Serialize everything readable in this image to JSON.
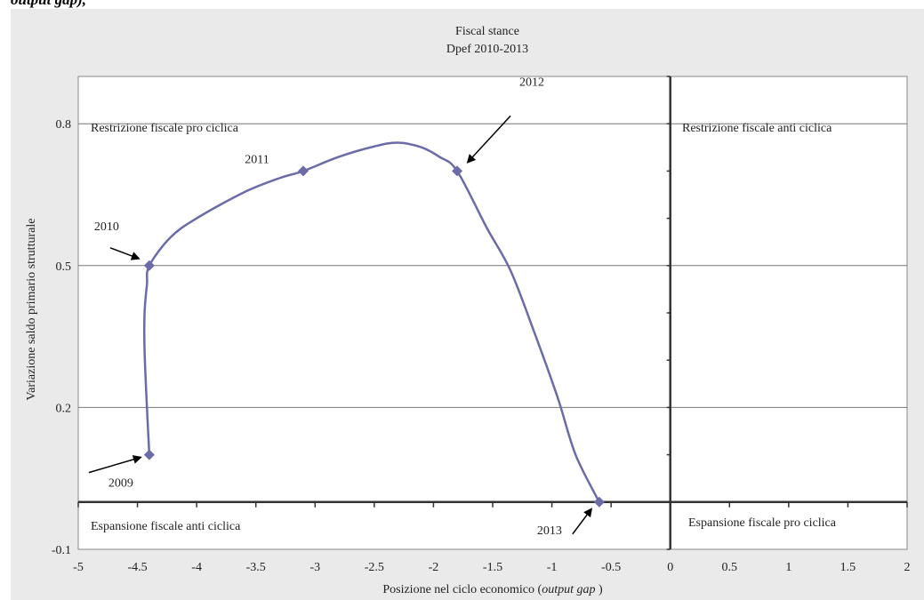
{
  "top_caption": "output gap),",
  "chart_data": {
    "type": "line",
    "title": "Fiscal stance",
    "subtitle": "Dpef 2010-2013",
    "xlabel_prefix": "Posizione nel ciclo economico (",
    "xlabel_italic": "output gap",
    "xlabel_suffix": " )",
    "ylabel": "Variazione saldo primario strutturale",
    "xlim": [
      -5,
      2
    ],
    "ylim": [
      -0.1,
      0.9
    ],
    "x_ticks": [
      -5,
      -4.5,
      -4,
      -3.5,
      -3,
      -2.5,
      -2,
      -1.5,
      -1,
      -0.5,
      0,
      0.5,
      1,
      1.5,
      2
    ],
    "x_tick_labels": [
      "-5",
      "-4.5",
      "-4",
      "-3.5",
      "-3",
      "-2.5",
      "-2",
      "-1.5",
      "-1",
      "-0.5",
      "0",
      "0.5",
      "1",
      "1.5",
      "2"
    ],
    "y_ticks": [
      -0.1,
      0.2,
      0.5,
      0.8
    ],
    "y_tick_labels": [
      "-0.1",
      "0.2",
      "0.5",
      "0.8"
    ],
    "grid": "horizontal",
    "series_color": "#6b6ba8",
    "points": [
      {
        "label": "2009",
        "x": -4.4,
        "y": 0.1
      },
      {
        "label": "2010",
        "x": -4.4,
        "y": 0.5
      },
      {
        "label": "2011",
        "x": -3.1,
        "y": 0.7
      },
      {
        "label": "2012",
        "x": -1.8,
        "y": 0.7
      },
      {
        "label": "2013",
        "x": -0.6,
        "y": 0.0
      }
    ],
    "curve": [
      [
        -4.4,
        0.1
      ],
      [
        -4.42,
        0.2
      ],
      [
        -4.44,
        0.32
      ],
      [
        -4.44,
        0.4
      ],
      [
        -4.42,
        0.46
      ],
      [
        -4.4,
        0.5
      ],
      [
        -4.22,
        0.56
      ],
      [
        -4.0,
        0.6
      ],
      [
        -3.6,
        0.655
      ],
      [
        -3.3,
        0.685
      ],
      [
        -3.1,
        0.7
      ],
      [
        -2.8,
        0.73
      ],
      [
        -2.5,
        0.752
      ],
      [
        -2.3,
        0.76
      ],
      [
        -2.1,
        0.75
      ],
      [
        -1.95,
        0.73
      ],
      [
        -1.8,
        0.7
      ],
      [
        -1.55,
        0.58
      ],
      [
        -1.35,
        0.49
      ],
      [
        -1.15,
        0.36
      ],
      [
        -0.95,
        0.22
      ],
      [
        -0.8,
        0.1
      ],
      [
        -0.6,
        0.0
      ]
    ],
    "quadrant_labels": {
      "top_left": "Restrizione fiscale pro ciclica",
      "top_right": "Restrizione fiscale anti ciclica",
      "bottom_left": "Espansione fiscale anti ciclica",
      "bottom_right": "Espansione fiscale pro ciclica"
    }
  }
}
